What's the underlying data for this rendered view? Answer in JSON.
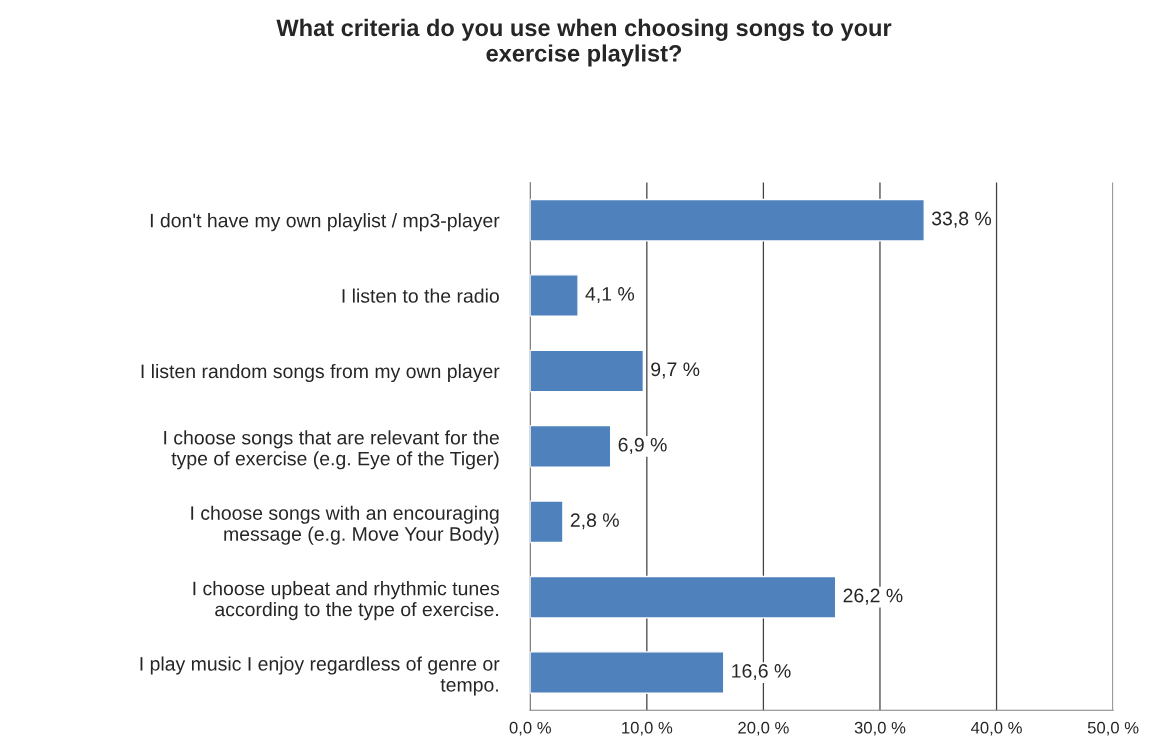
{
  "chart_data": {
    "type": "bar",
    "orientation": "horizontal",
    "title": "What criteria do you use when choosing songs to your\nexercise playlist?",
    "categories": [
      "I don't have my own playlist / mp3-player",
      "I listen to the radio",
      "I listen random songs from my own player",
      "I choose songs that are relevant for the\ntype of exercise (e.g. Eye of the Tiger)",
      "I choose songs with an encouraging\nmessage (e.g. Move Your Body)",
      "I choose upbeat and rhythmic tunes\naccording to the type of exercise.",
      "I play music I enjoy regardless of genre or\ntempo."
    ],
    "values": [
      33.8,
      4.1,
      9.7,
      6.9,
      2.8,
      26.2,
      16.6
    ],
    "value_labels": [
      "33,8 %",
      "4,1 %",
      "9,7 %",
      "6,9 %",
      "2,8 %",
      "26,2 %",
      "16,6 %"
    ],
    "color": "#4f81bd",
    "xlim": [
      0,
      50
    ],
    "xticks": [
      {
        "value": 0,
        "label": "0,0 %"
      },
      {
        "value": 10,
        "label": "10,0 %"
      },
      {
        "value": 20,
        "label": "20,0 %"
      },
      {
        "value": 30,
        "label": "30,0 %"
      },
      {
        "value": 40,
        "label": "40,0 %"
      },
      {
        "value": 50,
        "label": "50,0 %"
      }
    ],
    "grid": "x",
    "legend": false
  }
}
